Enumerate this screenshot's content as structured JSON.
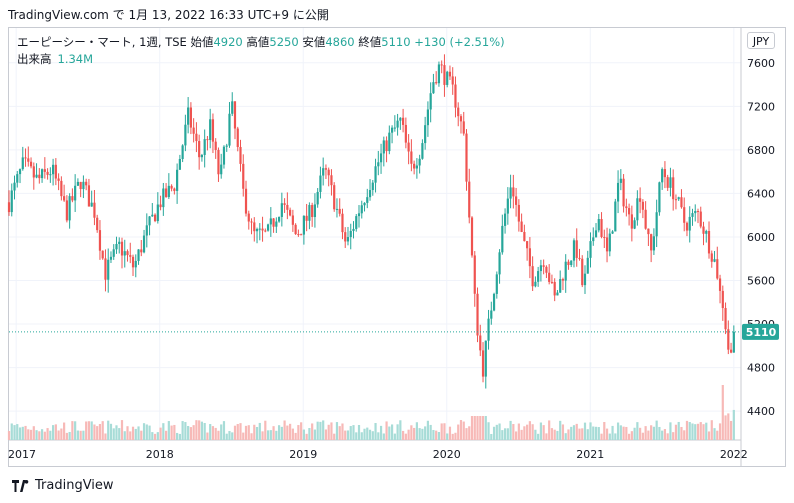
{
  "header": {
    "text": "TradingView.com で 1月 13, 2022 16:33 UTC+9 に公開"
  },
  "legend": {
    "symbol": "エーピーシー・マート, 1週, TSE",
    "open_label": "始値",
    "open": "4920",
    "high_label": "高値",
    "high": "5250",
    "low_label": "安値",
    "low": "4860",
    "close_label": "終値",
    "close": "5110",
    "change": "+130 (+2.51%)",
    "volume_label": "出来高",
    "volume": "1.34M"
  },
  "currency": "JPY",
  "footer": {
    "brand": "TradingView"
  },
  "colors": {
    "up": "#26a69a",
    "down": "#ef5350",
    "vol_up": "#a7dcd7",
    "vol_down": "#f7b9b7",
    "grid": "#f0f3fa"
  },
  "chart_data": {
    "type": "candlestick",
    "interval": "1 week",
    "y_ticks": [
      4400,
      4800,
      5200,
      5600,
      6000,
      6400,
      6800,
      7200,
      7600
    ],
    "x_ticks": [
      "2017",
      "2018",
      "2019",
      "2020",
      "2021",
      "2022"
    ],
    "ylim": [
      4300,
      7800
    ],
    "last_price": "5110",
    "anchors": [
      [
        2016.95,
        6300
      ],
      [
        2017.05,
        6650
      ],
      [
        2017.15,
        6500
      ],
      [
        2017.25,
        6600
      ],
      [
        2017.35,
        6200
      ],
      [
        2017.45,
        6500
      ],
      [
        2017.55,
        6200
      ],
      [
        2017.62,
        5650
      ],
      [
        2017.72,
        5900
      ],
      [
        2017.82,
        5700
      ],
      [
        2017.9,
        6000
      ],
      [
        2018.0,
        6300
      ],
      [
        2018.1,
        6450
      ],
      [
        2018.2,
        7100
      ],
      [
        2018.28,
        6700
      ],
      [
        2018.35,
        7000
      ],
      [
        2018.42,
        6500
      ],
      [
        2018.5,
        7200
      ],
      [
        2018.58,
        6400
      ],
      [
        2018.65,
        6000
      ],
      [
        2018.75,
        6000
      ],
      [
        2018.85,
        6300
      ],
      [
        2018.95,
        6000
      ],
      [
        2019.05,
        6200
      ],
      [
        2019.15,
        6600
      ],
      [
        2019.22,
        6300
      ],
      [
        2019.3,
        5900
      ],
      [
        2019.38,
        6200
      ],
      [
        2019.5,
        6600
      ],
      [
        2019.6,
        6900
      ],
      [
        2019.68,
        7050
      ],
      [
        2019.75,
        6600
      ],
      [
        2019.82,
        6800
      ],
      [
        2019.9,
        7400
      ],
      [
        2019.95,
        7550
      ],
      [
        2020.05,
        7300
      ],
      [
        2020.12,
        6900
      ],
      [
        2020.15,
        6300
      ],
      [
        2020.2,
        5300
      ],
      [
        2020.25,
        4750
      ],
      [
        2020.3,
        5250
      ],
      [
        2020.38,
        6000
      ],
      [
        2020.45,
        6500
      ],
      [
        2020.52,
        6000
      ],
      [
        2020.6,
        5600
      ],
      [
        2020.68,
        5800
      ],
      [
        2020.75,
        5400
      ],
      [
        2020.82,
        5700
      ],
      [
        2020.9,
        5900
      ],
      [
        2020.95,
        5500
      ],
      [
        2021.05,
        6200
      ],
      [
        2021.12,
        5800
      ],
      [
        2021.2,
        6500
      ],
      [
        2021.28,
        6100
      ],
      [
        2021.35,
        6400
      ],
      [
        2021.42,
        5800
      ],
      [
        2021.5,
        6600
      ],
      [
        2021.58,
        6400
      ],
      [
        2021.66,
        6100
      ],
      [
        2021.75,
        6200
      ],
      [
        2021.82,
        5950
      ],
      [
        2021.88,
        5700
      ],
      [
        2021.92,
        5300
      ],
      [
        2021.96,
        4900
      ],
      [
        2022.0,
        5110
      ]
    ]
  }
}
